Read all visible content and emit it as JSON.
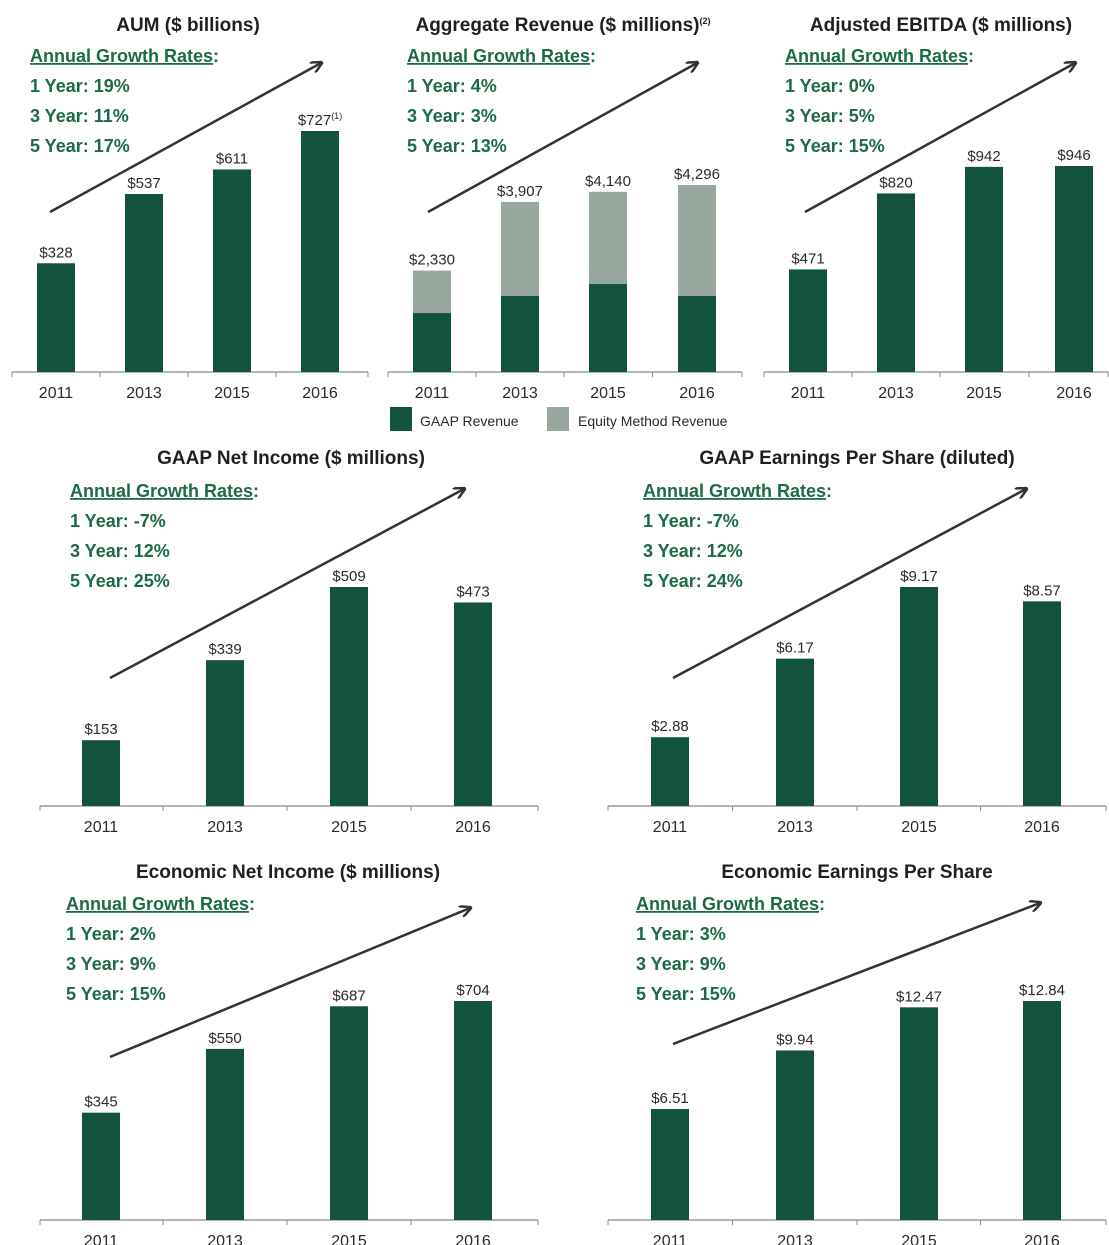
{
  "colors": {
    "bar": "#145240",
    "equity": "#98a89e",
    "growth_text": "#1c6a47",
    "axis": "#888888",
    "arrow": "#333333"
  },
  "legend": {
    "gaap": "GAAP Revenue",
    "equity": "Equity Method Revenue"
  },
  "chart_data": [
    {
      "type": "bar",
      "title": "AUM ($ billions)",
      "growth_header": "Annual Growth Rates",
      "growth_lines": [
        "1 Year: 19%",
        "3 Year: 11%",
        "5 Year: 17%"
      ],
      "categories": [
        "2011",
        "2013",
        "2015",
        "2016"
      ],
      "values": [
        328,
        537,
        611,
        727
      ],
      "labels": [
        "$328",
        "$537",
        "$611",
        "$727"
      ],
      "label_superscripts": [
        "",
        "",
        "",
        "(1)"
      ],
      "ylim": [
        0,
        727
      ]
    },
    {
      "type": "bar",
      "title": "Aggregate Revenue ($ millions)",
      "title_superscript": "(2)",
      "growth_header": "Annual Growth Rates",
      "growth_lines": [
        "1 Year: 4%",
        "3 Year: 3%",
        "5 Year: 13%"
      ],
      "categories": [
        "2011",
        "2013",
        "2015",
        "2016"
      ],
      "stacked": true,
      "series": [
        {
          "name": "GAAP Revenue",
          "values": [
            1355,
            1751,
            2021,
            1751
          ]
        },
        {
          "name": "Equity Method Revenue",
          "values": [
            975,
            2156,
            2119,
            2545
          ]
        }
      ],
      "labels": [
        "$2,330",
        "$3,907",
        "$4,140",
        "$4,296"
      ],
      "ylim": [
        0,
        4296
      ]
    },
    {
      "type": "bar",
      "title": "Adjusted EBITDA ($ millions)",
      "growth_header": "Annual Growth Rates",
      "growth_lines": [
        "1 Year: 0%",
        "3 Year: 5%",
        "5 Year: 15%"
      ],
      "categories": [
        "2011",
        "2013",
        "2015",
        "2016"
      ],
      "values": [
        471,
        820,
        942,
        946
      ],
      "labels": [
        "$471",
        "$820",
        "$942",
        "$946"
      ],
      "ylim": [
        0,
        946
      ]
    },
    {
      "type": "bar",
      "title": "GAAP Net Income ($ millions)",
      "growth_header": "Annual Growth Rates",
      "growth_lines": [
        "1 Year: -7%",
        "3 Year: 12%",
        "5 Year: 25%"
      ],
      "categories": [
        "2011",
        "2013",
        "2015",
        "2016"
      ],
      "values": [
        153,
        339,
        509,
        473
      ],
      "labels": [
        "$153",
        "$339",
        "$509",
        "$473"
      ],
      "ylim": [
        0,
        509
      ]
    },
    {
      "type": "bar",
      "title": "GAAP Earnings Per Share (diluted)",
      "growth_header": "Annual Growth Rates",
      "growth_lines": [
        "1 Year: -7%",
        "3 Year: 12%",
        "5 Year: 24%"
      ],
      "categories": [
        "2011",
        "2013",
        "2015",
        "2016"
      ],
      "values": [
        2.88,
        6.17,
        9.17,
        8.57
      ],
      "labels": [
        "$2.88",
        "$6.17",
        "$9.17",
        "$8.57"
      ],
      "ylim": [
        0,
        9.17
      ]
    },
    {
      "type": "bar",
      "title": "Economic Net Income ($ millions)",
      "growth_header": "Annual Growth Rates",
      "growth_lines": [
        "1 Year: 2%",
        "3 Year: 9%",
        "5 Year: 15%"
      ],
      "categories": [
        "2011",
        "2013",
        "2015",
        "2016"
      ],
      "values": [
        345,
        550,
        687,
        704
      ],
      "labels": [
        "$345",
        "$550",
        "$687",
        "$704"
      ],
      "ylim": [
        0,
        704
      ]
    },
    {
      "type": "bar",
      "title": "Economic Earnings Per Share",
      "growth_header": "Annual Growth Rates",
      "growth_lines": [
        "1 Year: 3%",
        "3 Year: 9%",
        "5 Year: 15%"
      ],
      "categories": [
        "2011",
        "2013",
        "2015",
        "2016"
      ],
      "values": [
        6.51,
        9.94,
        12.47,
        12.84
      ],
      "labels": [
        "$6.51",
        "$9.94",
        "$12.47",
        "$12.84"
      ],
      "ylim": [
        0,
        12.84
      ]
    }
  ]
}
